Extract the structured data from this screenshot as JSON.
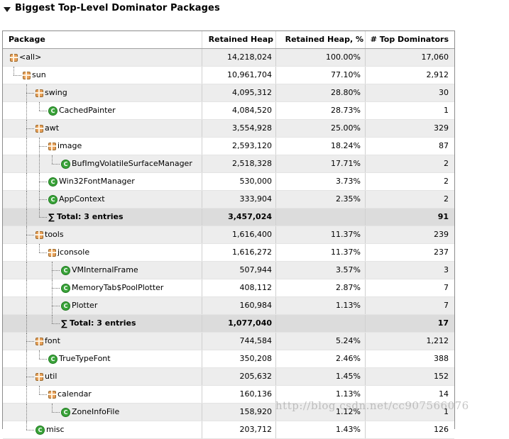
{
  "section": {
    "title": "Biggest Top-Level Dominator Packages"
  },
  "table": {
    "columns": [
      "Package",
      "Retained Heap",
      "Retained Heap, %",
      "# Top Dominators"
    ],
    "rows": [
      {
        "type": "package",
        "depth": 0,
        "name": "<all>",
        "heap": "14,218,024",
        "pct": "100.00%",
        "doms": "17,060"
      },
      {
        "type": "package",
        "depth": 1,
        "name": "sun",
        "heap": "10,961,704",
        "pct": "77.10%",
        "doms": "2,912"
      },
      {
        "type": "package",
        "depth": 2,
        "name": "swing",
        "heap": "4,095,312",
        "pct": "28.80%",
        "doms": "30"
      },
      {
        "type": "class",
        "depth": 3,
        "name": "CachedPainter",
        "heap": "4,084,520",
        "pct": "28.73%",
        "doms": "1"
      },
      {
        "type": "package",
        "depth": 2,
        "name": "awt",
        "heap": "3,554,928",
        "pct": "25.00%",
        "doms": "329"
      },
      {
        "type": "package",
        "depth": 3,
        "name": "image",
        "heap": "2,593,120",
        "pct": "18.24%",
        "doms": "87"
      },
      {
        "type": "class",
        "depth": 4,
        "name": "BufImgVolatileSurfaceManager",
        "heap": "2,518,328",
        "pct": "17.71%",
        "doms": "2"
      },
      {
        "type": "class",
        "depth": 3,
        "name": "Win32FontManager",
        "heap": "530,000",
        "pct": "3.73%",
        "doms": "2"
      },
      {
        "type": "class",
        "depth": 3,
        "name": "AppContext",
        "heap": "333,904",
        "pct": "2.35%",
        "doms": "2"
      },
      {
        "type": "total",
        "depth": 3,
        "name": "Total: 3 entries",
        "heap": "3,457,024",
        "pct": "",
        "doms": "91"
      },
      {
        "type": "package",
        "depth": 2,
        "name": "tools",
        "heap": "1,616,400",
        "pct": "11.37%",
        "doms": "239"
      },
      {
        "type": "package",
        "depth": 3,
        "name": "jconsole",
        "heap": "1,616,272",
        "pct": "11.37%",
        "doms": "237"
      },
      {
        "type": "class",
        "depth": 4,
        "name": "VMInternalFrame",
        "heap": "507,944",
        "pct": "3.57%",
        "doms": "3"
      },
      {
        "type": "class",
        "depth": 4,
        "name": "MemoryTab$PoolPlotter",
        "heap": "408,112",
        "pct": "2.87%",
        "doms": "7"
      },
      {
        "type": "class",
        "depth": 4,
        "name": "Plotter",
        "heap": "160,984",
        "pct": "1.13%",
        "doms": "7"
      },
      {
        "type": "total",
        "depth": 4,
        "name": "Total: 3 entries",
        "heap": "1,077,040",
        "pct": "",
        "doms": "17"
      },
      {
        "type": "package",
        "depth": 2,
        "name": "font",
        "heap": "744,584",
        "pct": "5.24%",
        "doms": "1,212"
      },
      {
        "type": "class",
        "depth": 3,
        "name": "TrueTypeFont",
        "heap": "350,208",
        "pct": "2.46%",
        "doms": "388"
      },
      {
        "type": "package",
        "depth": 2,
        "name": "util",
        "heap": "205,632",
        "pct": "1.45%",
        "doms": "152"
      },
      {
        "type": "package",
        "depth": 3,
        "name": "calendar",
        "heap": "160,136",
        "pct": "1.13%",
        "doms": "14"
      },
      {
        "type": "class",
        "depth": 4,
        "name": "ZoneInfoFile",
        "heap": "158,920",
        "pct": "1.12%",
        "doms": "1"
      },
      {
        "type": "class",
        "depth": 2,
        "name": "misc",
        "heap": "203,712",
        "pct": "1.43%",
        "doms": "126"
      }
    ]
  },
  "icons": {
    "package": "package-icon",
    "class": "class-icon",
    "total": "sum-icon"
  },
  "class_icon_letter": "C",
  "sum_symbol": "∑",
  "watermark": "http://blog.csdn.net/cc907566076"
}
